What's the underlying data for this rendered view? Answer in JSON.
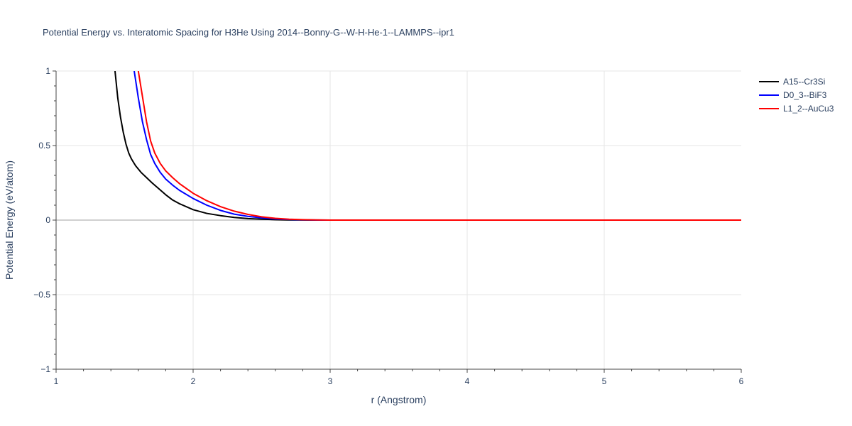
{
  "chart_data": {
    "type": "line",
    "title": "Potential Energy vs. Interatomic Spacing for H3He Using 2014--Bonny-G--W-H-He-1--LAMMPS--ipr1",
    "xlabel": "r (Angstrom)",
    "ylabel": "Potential Energy (eV/atom)",
    "xlim": [
      1,
      6
    ],
    "ylim": [
      -1,
      1
    ],
    "x_ticks": [
      1,
      2,
      3,
      4,
      5,
      6
    ],
    "x_tick_labels": [
      "1",
      "2",
      "3",
      "4",
      "5",
      "6"
    ],
    "y_ticks": [
      -1,
      -0.5,
      0,
      0.5,
      1
    ],
    "y_tick_labels": [
      "−1",
      "−0.5",
      "0",
      "0.5",
      "1"
    ],
    "grid": true,
    "legend_position": "top-right",
    "series": [
      {
        "name": "A15--Cr3Si",
        "color": "#000000",
        "x": [
          1.43,
          1.45,
          1.47,
          1.49,
          1.51,
          1.53,
          1.55,
          1.58,
          1.62,
          1.66,
          1.7,
          1.75,
          1.8,
          1.85,
          1.9,
          2.0,
          2.1,
          2.2,
          2.3,
          2.4,
          2.5,
          2.6,
          2.7,
          2.8,
          2.9,
          3.0,
          3.5,
          4.0,
          4.5,
          5.0,
          5.5,
          6.0
        ],
        "y": [
          1.0,
          0.82,
          0.69,
          0.59,
          0.51,
          0.45,
          0.41,
          0.365,
          0.32,
          0.285,
          0.25,
          0.21,
          0.17,
          0.135,
          0.11,
          0.07,
          0.045,
          0.03,
          0.018,
          0.01,
          0.006,
          0.003,
          0.0015,
          0.0005,
          0.0,
          0.0,
          0.0,
          0.0,
          0.0,
          0.0,
          0.0,
          0.0
        ]
      },
      {
        "name": "D0_3--BiF3",
        "color": "#0000ff",
        "x": [
          1.57,
          1.6,
          1.63,
          1.66,
          1.69,
          1.72,
          1.76,
          1.8,
          1.85,
          1.9,
          2.0,
          2.1,
          2.2,
          2.3,
          2.4,
          2.5,
          2.6,
          2.7,
          2.8,
          2.9,
          3.0,
          3.5,
          4.0,
          4.5,
          5.0,
          5.5,
          6.0
        ],
        "y": [
          1.0,
          0.82,
          0.66,
          0.54,
          0.44,
          0.38,
          0.32,
          0.275,
          0.235,
          0.2,
          0.145,
          0.1,
          0.065,
          0.04,
          0.025,
          0.015,
          0.008,
          0.004,
          0.002,
          0.0005,
          0.0,
          0.0,
          0.0,
          0.0,
          0.0,
          0.0,
          0.0
        ]
      },
      {
        "name": "L1_2--AuCu3",
        "color": "#ff0000",
        "x": [
          1.6,
          1.63,
          1.66,
          1.69,
          1.72,
          1.76,
          1.8,
          1.85,
          1.9,
          2.0,
          2.1,
          2.2,
          2.3,
          2.4,
          2.5,
          2.6,
          2.7,
          2.8,
          2.9,
          3.0,
          3.5,
          4.0,
          4.5,
          5.0,
          5.5,
          6.0
        ],
        "y": [
          1.0,
          0.83,
          0.66,
          0.53,
          0.45,
          0.38,
          0.33,
          0.285,
          0.245,
          0.18,
          0.13,
          0.09,
          0.06,
          0.038,
          0.022,
          0.012,
          0.006,
          0.003,
          0.001,
          0.0,
          0.0,
          0.0,
          0.0,
          0.0,
          0.0,
          0.0
        ]
      }
    ]
  }
}
